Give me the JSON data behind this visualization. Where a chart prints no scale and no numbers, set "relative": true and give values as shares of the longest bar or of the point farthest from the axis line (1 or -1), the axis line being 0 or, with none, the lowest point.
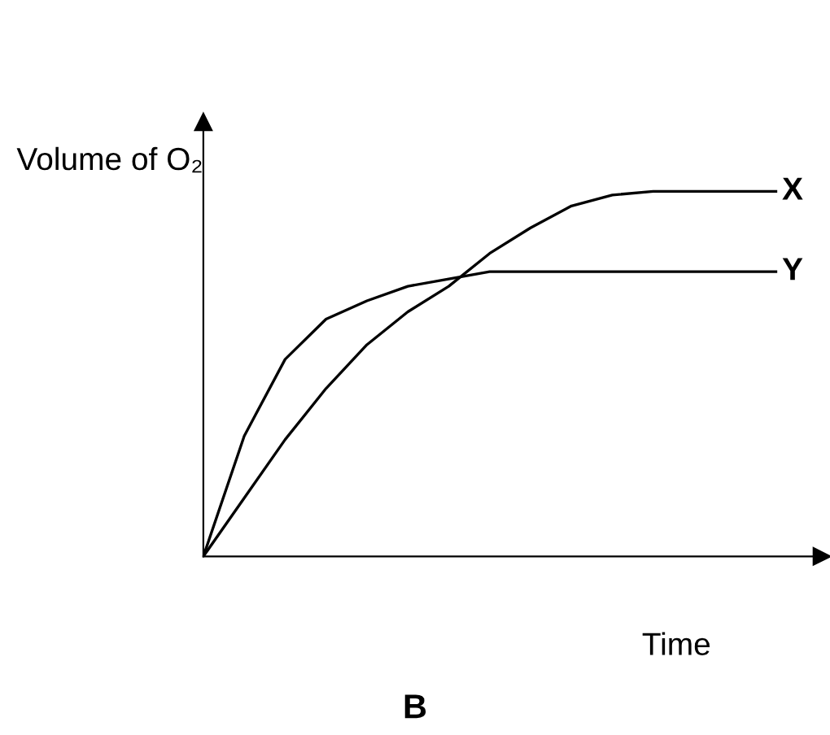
{
  "chart_data": {
    "type": "line",
    "relative": true,
    "xlabel": "Time",
    "ylabel": "Volume of O₂",
    "annotations": [
      "B"
    ],
    "categories": [
      null,
      null,
      null,
      null,
      null,
      null,
      null,
      null,
      null,
      null,
      null,
      null,
      null,
      null,
      null
    ],
    "series": [
      {
        "name": "X",
        "color": "#000000",
        "values": [
          0,
          0.16,
          0.32,
          0.46,
          0.58,
          0.67,
          0.74,
          0.83,
          0.9,
          0.96,
          0.99,
          1.0,
          1.0,
          1.0,
          1.0
        ]
      },
      {
        "name": "Y",
        "color": "#000000",
        "values": [
          0,
          0.33,
          0.54,
          0.65,
          0.7,
          0.74,
          0.76,
          0.78,
          0.78,
          0.78,
          0.78,
          0.78,
          0.78,
          0.78,
          0.78
        ]
      }
    ],
    "grid": false,
    "legend": false,
    "marker": "none",
    "line_style": "solid"
  }
}
